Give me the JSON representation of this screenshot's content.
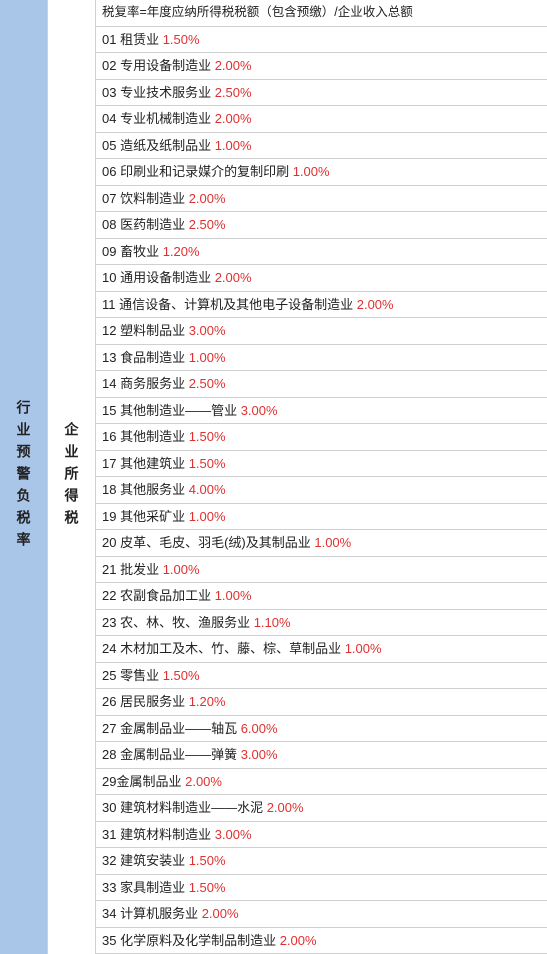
{
  "leftLabel": "行业预警负税率",
  "midLabel": "企业所得税",
  "formulaHeader": "税复率=年度应纳所得税税额（包含预缴）/企业收入总额",
  "colors": {
    "leftBg": "#a9c6e8",
    "rateColor": "#e03030",
    "textColor": "#222222",
    "borderColor": "#d0d0d0",
    "background": "#ffffff"
  },
  "rows": [
    {
      "num": "01",
      "label": "租赁业",
      "rate": "1.50%"
    },
    {
      "num": "02",
      "label": "专用设备制造业",
      "rate": "2.00%"
    },
    {
      "num": "03",
      "label": "专业技术服务业",
      "rate": "2.50%"
    },
    {
      "num": "04",
      "label": "专业机械制造业",
      "rate": "2.00%"
    },
    {
      "num": "05",
      "label": "造纸及纸制品业",
      "rate": "1.00%"
    },
    {
      "num": "06",
      "label": "印刷业和记录媒介的复制印刷",
      "rate": "1.00%"
    },
    {
      "num": "07",
      "label": "饮料制造业",
      "rate": "2.00%"
    },
    {
      "num": "08",
      "label": "医药制造业",
      "rate": "2.50%"
    },
    {
      "num": "09",
      "label": "畜牧业",
      "rate": "1.20%"
    },
    {
      "num": "10",
      "label": "通用设备制造业",
      "rate": "2.00%"
    },
    {
      "num": "11",
      "label": "通信设备、计算机及其他电子设备制造业",
      "rate": "2.00%"
    },
    {
      "num": "12",
      "label": "塑料制品业",
      "rate": "3.00%"
    },
    {
      "num": "13",
      "label": "食品制造业",
      "rate": "1.00%"
    },
    {
      "num": "14",
      "label": "商务服务业",
      "rate": "2.50%"
    },
    {
      "num": "15",
      "label": "其他制造业——管业",
      "rate": "3.00%"
    },
    {
      "num": "16",
      "label": "其他制造业",
      "rate": "1.50%"
    },
    {
      "num": "17",
      "label": "其他建筑业",
      "rate": "1.50%"
    },
    {
      "num": "18",
      "label": "其他服务业",
      "rate": "4.00%"
    },
    {
      "num": "19",
      "label": "其他采矿业",
      "rate": "1.00%"
    },
    {
      "num": "20",
      "label": "皮革、毛皮、羽毛(绒)及其制品业",
      "rate": "1.00%"
    },
    {
      "num": "21",
      "label": "批发业",
      "rate": "1.00%"
    },
    {
      "num": "22",
      "label": "农副食品加工业",
      "rate": "1.00%"
    },
    {
      "num": "23",
      "label": "农、林、牧、渔服务业",
      "rate": "1.10%"
    },
    {
      "num": "24",
      "label": "木材加工及木、竹、藤、棕、草制品业",
      "rate": "1.00%"
    },
    {
      "num": "25",
      "label": "零售业",
      "rate": "1.50%"
    },
    {
      "num": "26",
      "label": "居民服务业",
      "rate": "1.20%"
    },
    {
      "num": "27",
      "label": "金属制品业——轴瓦",
      "rate": "6.00%"
    },
    {
      "num": "28",
      "label": "金属制品业——弹簧",
      "rate": "3.00%"
    },
    {
      "num": "29",
      "label": "金属制品业",
      "rate": "2.00%",
      "noSpace": true
    },
    {
      "num": "30",
      "label": "建筑材料制造业——水泥",
      "rate": "2.00%"
    },
    {
      "num": "31",
      "label": "建筑材料制造业",
      "rate": "3.00%"
    },
    {
      "num": "32",
      "label": "建筑安装业",
      "rate": "1.50%"
    },
    {
      "num": "33",
      "label": "家具制造业",
      "rate": "1.50%"
    },
    {
      "num": "34",
      "label": "计算机服务业",
      "rate": "2.00%"
    },
    {
      "num": "35",
      "label": "化学原料及化学制品制造业",
      "rate": "2.00%"
    }
  ]
}
